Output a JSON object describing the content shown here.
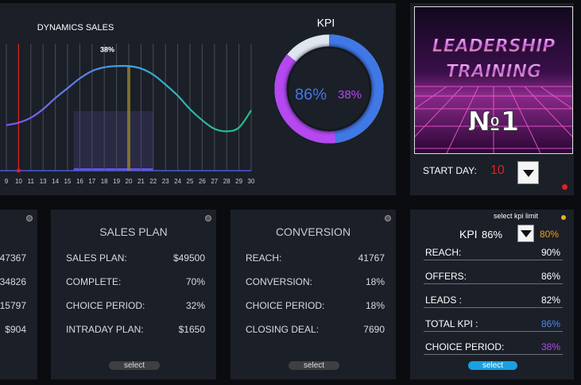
{
  "chart_data": [
    {
      "type": "line",
      "title": "DYNAMICS SALES",
      "annotation": "38%",
      "categories": [
        9,
        10,
        11,
        13,
        14,
        15,
        16,
        17,
        18,
        19,
        20,
        21,
        22,
        23,
        24,
        25,
        26,
        27,
        28,
        29,
        30
      ],
      "series": [
        {
          "colors": [
            "#8a4cf0",
            "#3aa6e0",
            "#22c080"
          ],
          "values": [
            37,
            39,
            43,
            50,
            59,
            67,
            75,
            81,
            84,
            85,
            85,
            83,
            78,
            70,
            61,
            50,
            41,
            34,
            32,
            35,
            49
          ]
        }
      ],
      "ylim": [
        0,
        100
      ]
    },
    {
      "type": "donut",
      "title": "KPI",
      "values": [
        86,
        38
      ],
      "value_labels": [
        "86%",
        "38%"
      ],
      "colors": [
        "#4078e6",
        "#b548f0"
      ]
    }
  ],
  "banner": {
    "lines": [
      "LEADERSHIP",
      "TRAINING"
    ],
    "number": "№1"
  },
  "start_day": {
    "label": "START DAY:",
    "value": "10"
  },
  "panels": [
    {
      "values": [
        "47367",
        "34826",
        "15797",
        "$904"
      ]
    },
    {
      "title": "SALES PLAN",
      "rows": [
        [
          "SALES PLAN:",
          "$49500"
        ],
        [
          "COMPLETE:",
          "70%"
        ],
        [
          "CHOICE PERIOD:",
          "32%"
        ],
        [
          "INTRADAY PLAN:",
          "$1650"
        ]
      ],
      "button": "select"
    },
    {
      "title": "CONVERSION",
      "rows": [
        [
          "REACH:",
          "41767"
        ],
        [
          "CONVERSION:",
          "18%"
        ],
        [
          "CHOICE PERIOD:",
          "18%"
        ],
        [
          "CLOSING DEAL:",
          "7690"
        ]
      ],
      "button": "select"
    },
    {
      "hint": "select kpi limit",
      "kpi_label": "KPI",
      "kpi_value": "86%",
      "limit": "80%",
      "rows": [
        [
          "REACH:",
          "90%"
        ],
        [
          "OFFERS:",
          "86%"
        ],
        [
          "LEADS :",
          "82%"
        ],
        [
          "TOTAL KPI :",
          "86%"
        ],
        [
          "CHOICE PERIOD:",
          "38%"
        ]
      ],
      "button": "select"
    }
  ]
}
